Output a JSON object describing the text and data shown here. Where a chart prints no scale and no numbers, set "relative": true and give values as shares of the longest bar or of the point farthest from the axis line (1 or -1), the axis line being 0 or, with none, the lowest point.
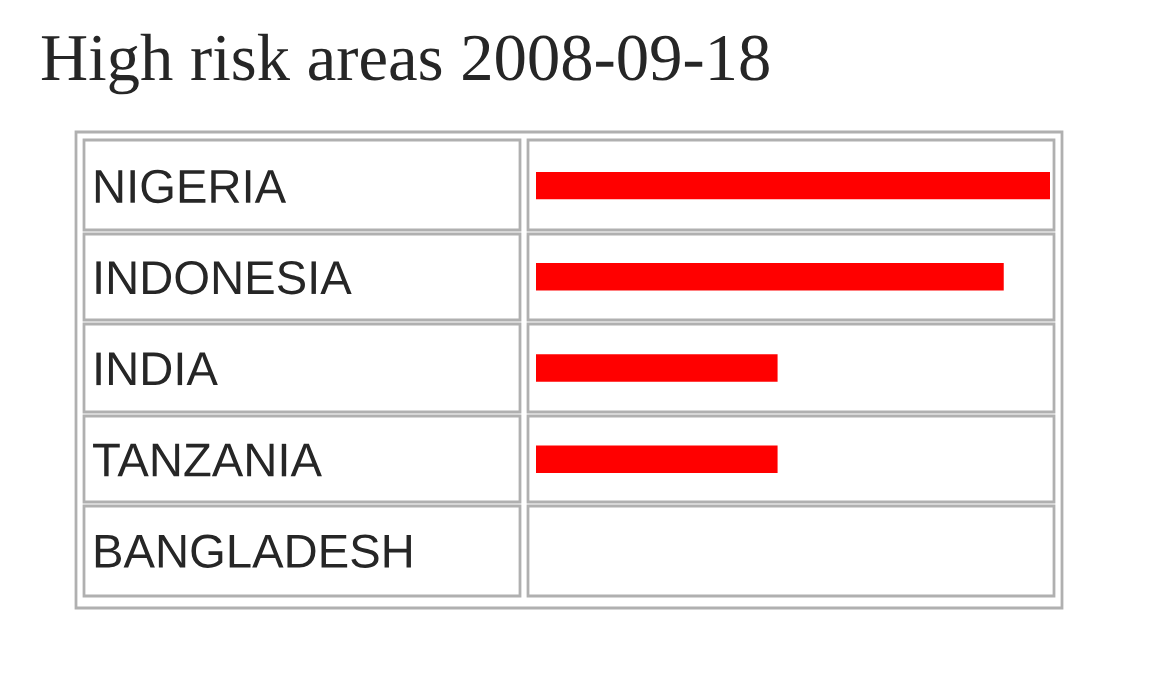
{
  "chart_data": {
    "type": "bar",
    "title": "High risk areas 2008-09-18",
    "orientation": "horizontal",
    "relative": true,
    "color": "#ff0000",
    "categories": [
      "NIGERIA",
      "INDONESIA",
      "INDIA",
      "TANZANIA",
      "BANGLADESH"
    ],
    "values": [
      1,
      0.91,
      0.47,
      0.47,
      0
    ]
  }
}
